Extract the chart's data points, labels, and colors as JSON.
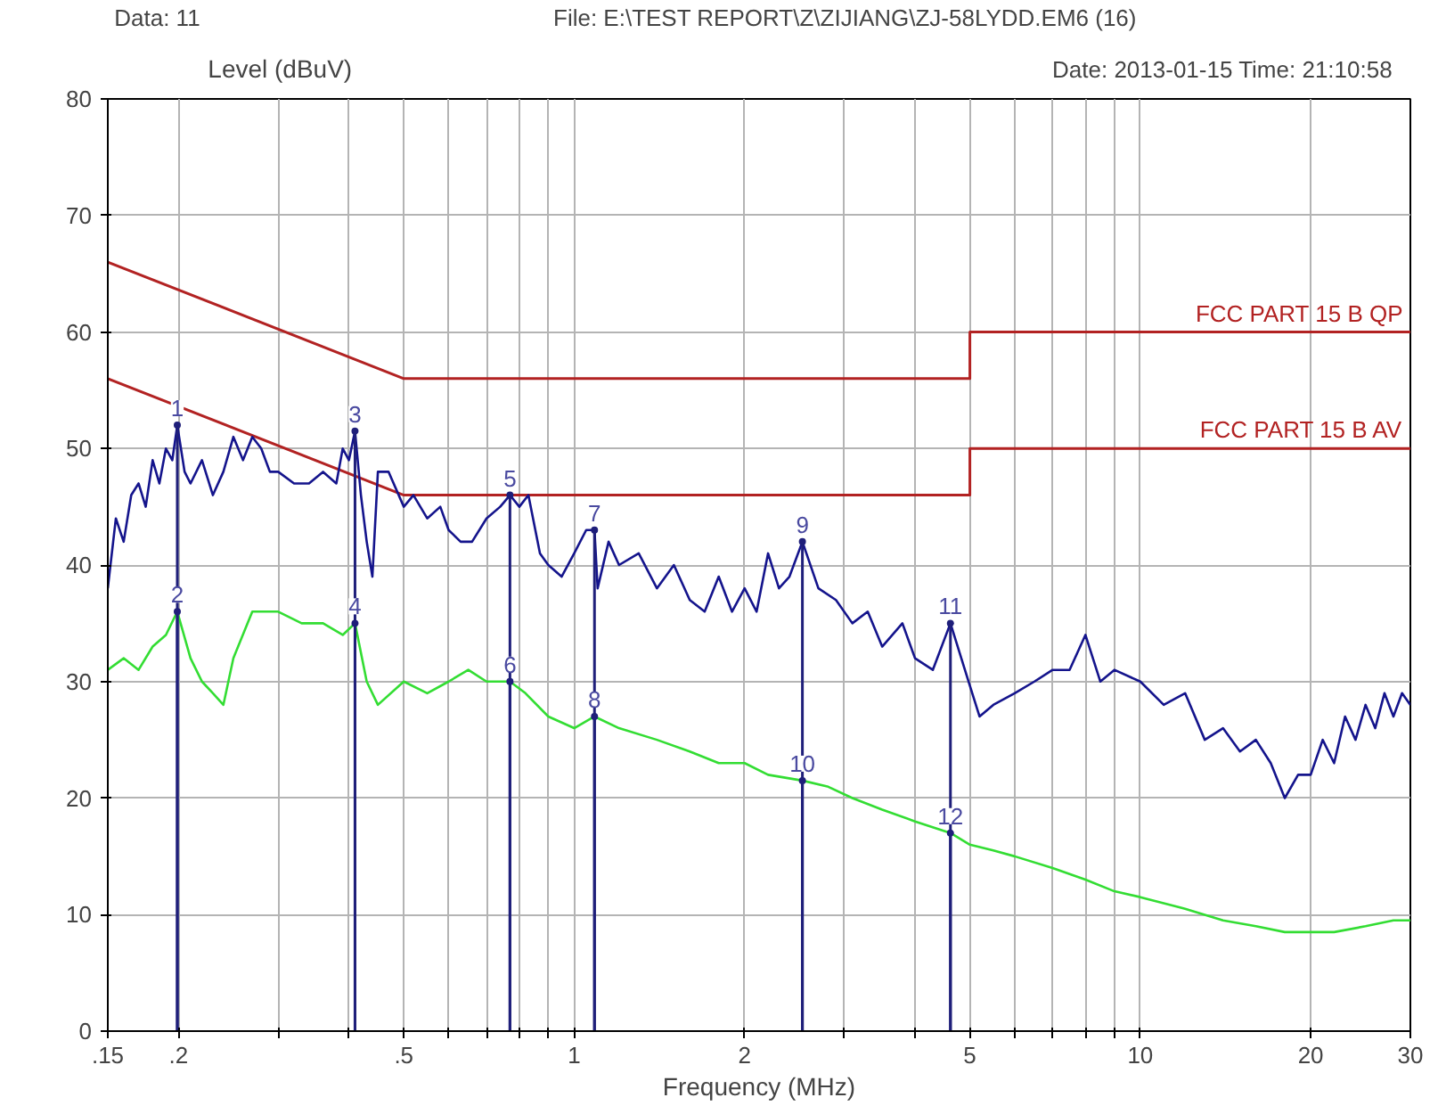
{
  "chart_data": {
    "type": "line",
    "xlabel": "Frequency (MHz)",
    "ylabel": "Level (dBuV)",
    "log": "x",
    "grid": true,
    "xlim": [
      0.15,
      30
    ],
    "ylim": [
      0,
      80
    ],
    "xticks": [
      {
        "value": 0.15,
        "label": ".15"
      },
      {
        "value": 0.2,
        "label": ".2"
      },
      {
        "value": 0.3,
        "label": null
      },
      {
        "value": 0.4,
        "label": null
      },
      {
        "value": 0.5,
        "label": ".5"
      },
      {
        "value": 0.6,
        "label": null
      },
      {
        "value": 0.7,
        "label": null
      },
      {
        "value": 0.8,
        "label": null
      },
      {
        "value": 0.9,
        "label": null
      },
      1,
      2,
      {
        "value": 3,
        "label": null
      },
      {
        "value": 4,
        "label": null
      },
      5,
      {
        "value": 6,
        "label": null
      },
      {
        "value": 7,
        "label": null
      },
      {
        "value": 8,
        "label": null
      },
      {
        "value": 9,
        "label": null
      },
      10,
      20,
      30
    ],
    "yticks": [
      0,
      10,
      20,
      30,
      40,
      50,
      60,
      70,
      80
    ],
    "series": [
      {
        "name": "FCC PART 15 B QP",
        "type": "line",
        "color": "#b22222",
        "x": [
          0.15,
          0.5,
          5,
          5,
          30
        ],
        "values": [
          66,
          56,
          56,
          60,
          60
        ]
      },
      {
        "name": "FCC PART 15 B AV",
        "type": "line",
        "color": "#b22222",
        "x": [
          0.15,
          0.5,
          5,
          5,
          30
        ],
        "values": [
          56,
          46,
          46,
          50,
          50
        ]
      },
      {
        "color": "#14148c",
        "x": [
          0.15,
          0.155,
          0.16,
          0.165,
          0.17,
          0.175,
          0.18,
          0.185,
          0.19,
          0.195,
          0.199,
          0.205,
          0.21,
          0.22,
          0.23,
          0.24,
          0.25,
          0.26,
          0.27,
          0.28,
          0.29,
          0.3,
          0.32,
          0.34,
          0.36,
          0.38,
          0.39,
          0.4,
          0.41,
          0.42,
          0.43,
          0.44,
          0.45,
          0.47,
          0.5,
          0.52,
          0.55,
          0.58,
          0.6,
          0.63,
          0.66,
          0.7,
          0.74,
          0.77,
          0.8,
          0.83,
          0.87,
          0.9,
          0.95,
          1.0,
          1.05,
          1.086,
          1.1,
          1.15,
          1.2,
          1.3,
          1.4,
          1.5,
          1.6,
          1.7,
          1.8,
          1.9,
          2.0,
          2.1,
          2.2,
          2.3,
          2.4,
          2.53,
          2.7,
          2.9,
          3.1,
          3.3,
          3.5,
          3.8,
          4.0,
          4.3,
          4.62,
          4.9,
          5.2,
          5.5,
          6.0,
          6.5,
          7.0,
          7.5,
          8.0,
          8.5,
          9.0,
          10,
          11,
          12,
          13,
          14,
          15,
          16,
          17,
          18,
          19,
          20,
          21,
          22,
          23,
          24,
          25,
          26,
          27,
          28,
          29,
          30
        ],
        "values": [
          38,
          44,
          42,
          46,
          47,
          45,
          49,
          47,
          50,
          49,
          52,
          48,
          47,
          49,
          46,
          48,
          51,
          49,
          51,
          50,
          48,
          48,
          47,
          47,
          48,
          47,
          50,
          49,
          51.5,
          46,
          42,
          39,
          48,
          48,
          45,
          46,
          44,
          45,
          43,
          42,
          42,
          44,
          45,
          46,
          45,
          46,
          41,
          40,
          39,
          41,
          43,
          43,
          38,
          42,
          40,
          41,
          38,
          40,
          37,
          36,
          39,
          36,
          38,
          36,
          41,
          38,
          39,
          42,
          38,
          37,
          35,
          36,
          33,
          35,
          32,
          31,
          35,
          31,
          27,
          28,
          29,
          30,
          31,
          31,
          34,
          30,
          31,
          30,
          28,
          29,
          25,
          26,
          24,
          25,
          23,
          20,
          22,
          22,
          25,
          23,
          27,
          25,
          28,
          26,
          29,
          27,
          29,
          28
        ]
      },
      {
        "color": "#33dd33",
        "x": [
          0.15,
          0.16,
          0.17,
          0.18,
          0.19,
          0.199,
          0.21,
          0.22,
          0.23,
          0.24,
          0.25,
          0.27,
          0.3,
          0.33,
          0.36,
          0.39,
          0.41,
          0.43,
          0.45,
          0.5,
          0.55,
          0.6,
          0.65,
          0.7,
          0.77,
          0.82,
          0.9,
          1.0,
          1.086,
          1.2,
          1.4,
          1.6,
          1.8,
          2.0,
          2.2,
          2.53,
          2.8,
          3.1,
          3.5,
          4.0,
          4.62,
          5.0,
          5.5,
          6.0,
          7,
          8,
          9,
          10,
          12,
          14,
          16,
          18,
          20,
          22,
          25,
          28,
          30
        ],
        "values": [
          31,
          32,
          31,
          33,
          34,
          36,
          32,
          30,
          29,
          28,
          32,
          36,
          36,
          35,
          35,
          34,
          35,
          30,
          28,
          30,
          29,
          30,
          31,
          30,
          30,
          29,
          27,
          26,
          27,
          26,
          25,
          24,
          23,
          23,
          22,
          21.5,
          21,
          20,
          19,
          18,
          17,
          16,
          15.5,
          15,
          14,
          13,
          12,
          11.5,
          10.5,
          9.5,
          9,
          8.5,
          8.5,
          8.5,
          9,
          9.5,
          9.5
        ]
      },
      {
        "type": "lollipop",
        "color": "#1f1f7a",
        "marker": "none",
        "x": [
          0.199,
          0.199,
          0.41,
          0.41,
          0.77,
          0.77,
          1.086,
          1.086,
          2.53,
          2.53,
          4.62,
          4.62
        ],
        "values": [
          52,
          36,
          51.5,
          35,
          46,
          30,
          43,
          27,
          42,
          21.5,
          35,
          17
        ]
      }
    ],
    "annotations": [
      "Data: 11",
      "File: E:\\TEST REPORT\\Z\\ZIJIANG\\ZJ-58LYDD.EM6  (16)",
      "Date: 2013-01-15  Time: 21:10:58",
      {
        "text": "1",
        "x": 0.199,
        "y": 52
      },
      {
        "text": "2",
        "x": 0.199,
        "y": 36
      },
      {
        "text": "3",
        "x": 0.41,
        "y": 51.5
      },
      {
        "text": "4",
        "x": 0.41,
        "y": 35
      },
      {
        "text": "5",
        "x": 0.77,
        "y": 46
      },
      {
        "text": "6",
        "x": 0.77,
        "y": 30
      },
      {
        "text": "7",
        "x": 1.086,
        "y": 43
      },
      {
        "text": "8",
        "x": 1.086,
        "y": 27
      },
      {
        "text": "9",
        "x": 2.53,
        "y": 42
      },
      {
        "text": "10",
        "x": 2.53,
        "y": 21.5
      },
      {
        "text": "11",
        "x": 4.62,
        "y": 35
      },
      {
        "text": "12",
        "x": 4.62,
        "y": 17
      }
    ]
  }
}
